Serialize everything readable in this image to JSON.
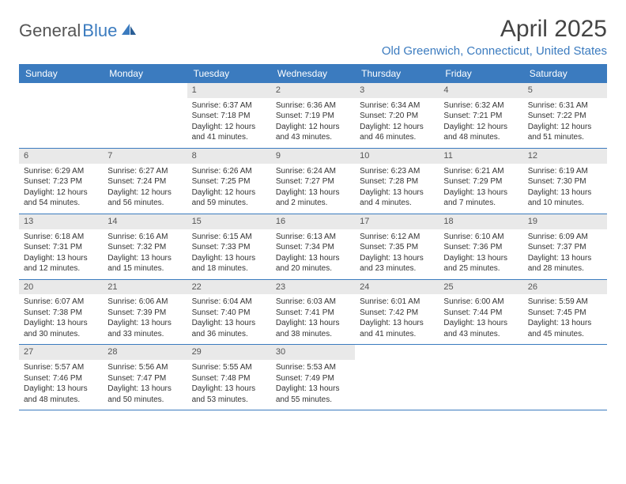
{
  "brand": {
    "part1": "General",
    "part2": "Blue"
  },
  "title": "April 2025",
  "location": "Old Greenwich, Connecticut, United States",
  "day_names": [
    "Sunday",
    "Monday",
    "Tuesday",
    "Wednesday",
    "Thursday",
    "Friday",
    "Saturday"
  ],
  "colors": {
    "accent": "#3b7bbf",
    "header_bg": "#3b7bbf",
    "header_text": "#ffffff",
    "daynum_bg": "#e9e9e9",
    "text": "#333333"
  },
  "weeks": [
    [
      null,
      null,
      {
        "n": "1",
        "sr": "Sunrise: 6:37 AM",
        "ss": "Sunset: 7:18 PM",
        "dl": "Daylight: 12 hours and 41 minutes."
      },
      {
        "n": "2",
        "sr": "Sunrise: 6:36 AM",
        "ss": "Sunset: 7:19 PM",
        "dl": "Daylight: 12 hours and 43 minutes."
      },
      {
        "n": "3",
        "sr": "Sunrise: 6:34 AM",
        "ss": "Sunset: 7:20 PM",
        "dl": "Daylight: 12 hours and 46 minutes."
      },
      {
        "n": "4",
        "sr": "Sunrise: 6:32 AM",
        "ss": "Sunset: 7:21 PM",
        "dl": "Daylight: 12 hours and 48 minutes."
      },
      {
        "n": "5",
        "sr": "Sunrise: 6:31 AM",
        "ss": "Sunset: 7:22 PM",
        "dl": "Daylight: 12 hours and 51 minutes."
      }
    ],
    [
      {
        "n": "6",
        "sr": "Sunrise: 6:29 AM",
        "ss": "Sunset: 7:23 PM",
        "dl": "Daylight: 12 hours and 54 minutes."
      },
      {
        "n": "7",
        "sr": "Sunrise: 6:27 AM",
        "ss": "Sunset: 7:24 PM",
        "dl": "Daylight: 12 hours and 56 minutes."
      },
      {
        "n": "8",
        "sr": "Sunrise: 6:26 AM",
        "ss": "Sunset: 7:25 PM",
        "dl": "Daylight: 12 hours and 59 minutes."
      },
      {
        "n": "9",
        "sr": "Sunrise: 6:24 AM",
        "ss": "Sunset: 7:27 PM",
        "dl": "Daylight: 13 hours and 2 minutes."
      },
      {
        "n": "10",
        "sr": "Sunrise: 6:23 AM",
        "ss": "Sunset: 7:28 PM",
        "dl": "Daylight: 13 hours and 4 minutes."
      },
      {
        "n": "11",
        "sr": "Sunrise: 6:21 AM",
        "ss": "Sunset: 7:29 PM",
        "dl": "Daylight: 13 hours and 7 minutes."
      },
      {
        "n": "12",
        "sr": "Sunrise: 6:19 AM",
        "ss": "Sunset: 7:30 PM",
        "dl": "Daylight: 13 hours and 10 minutes."
      }
    ],
    [
      {
        "n": "13",
        "sr": "Sunrise: 6:18 AM",
        "ss": "Sunset: 7:31 PM",
        "dl": "Daylight: 13 hours and 12 minutes."
      },
      {
        "n": "14",
        "sr": "Sunrise: 6:16 AM",
        "ss": "Sunset: 7:32 PM",
        "dl": "Daylight: 13 hours and 15 minutes."
      },
      {
        "n": "15",
        "sr": "Sunrise: 6:15 AM",
        "ss": "Sunset: 7:33 PM",
        "dl": "Daylight: 13 hours and 18 minutes."
      },
      {
        "n": "16",
        "sr": "Sunrise: 6:13 AM",
        "ss": "Sunset: 7:34 PM",
        "dl": "Daylight: 13 hours and 20 minutes."
      },
      {
        "n": "17",
        "sr": "Sunrise: 6:12 AM",
        "ss": "Sunset: 7:35 PM",
        "dl": "Daylight: 13 hours and 23 minutes."
      },
      {
        "n": "18",
        "sr": "Sunrise: 6:10 AM",
        "ss": "Sunset: 7:36 PM",
        "dl": "Daylight: 13 hours and 25 minutes."
      },
      {
        "n": "19",
        "sr": "Sunrise: 6:09 AM",
        "ss": "Sunset: 7:37 PM",
        "dl": "Daylight: 13 hours and 28 minutes."
      }
    ],
    [
      {
        "n": "20",
        "sr": "Sunrise: 6:07 AM",
        "ss": "Sunset: 7:38 PM",
        "dl": "Daylight: 13 hours and 30 minutes."
      },
      {
        "n": "21",
        "sr": "Sunrise: 6:06 AM",
        "ss": "Sunset: 7:39 PM",
        "dl": "Daylight: 13 hours and 33 minutes."
      },
      {
        "n": "22",
        "sr": "Sunrise: 6:04 AM",
        "ss": "Sunset: 7:40 PM",
        "dl": "Daylight: 13 hours and 36 minutes."
      },
      {
        "n": "23",
        "sr": "Sunrise: 6:03 AM",
        "ss": "Sunset: 7:41 PM",
        "dl": "Daylight: 13 hours and 38 minutes."
      },
      {
        "n": "24",
        "sr": "Sunrise: 6:01 AM",
        "ss": "Sunset: 7:42 PM",
        "dl": "Daylight: 13 hours and 41 minutes."
      },
      {
        "n": "25",
        "sr": "Sunrise: 6:00 AM",
        "ss": "Sunset: 7:44 PM",
        "dl": "Daylight: 13 hours and 43 minutes."
      },
      {
        "n": "26",
        "sr": "Sunrise: 5:59 AM",
        "ss": "Sunset: 7:45 PM",
        "dl": "Daylight: 13 hours and 45 minutes."
      }
    ],
    [
      {
        "n": "27",
        "sr": "Sunrise: 5:57 AM",
        "ss": "Sunset: 7:46 PM",
        "dl": "Daylight: 13 hours and 48 minutes."
      },
      {
        "n": "28",
        "sr": "Sunrise: 5:56 AM",
        "ss": "Sunset: 7:47 PM",
        "dl": "Daylight: 13 hours and 50 minutes."
      },
      {
        "n": "29",
        "sr": "Sunrise: 5:55 AM",
        "ss": "Sunset: 7:48 PM",
        "dl": "Daylight: 13 hours and 53 minutes."
      },
      {
        "n": "30",
        "sr": "Sunrise: 5:53 AM",
        "ss": "Sunset: 7:49 PM",
        "dl": "Daylight: 13 hours and 55 minutes."
      },
      null,
      null,
      null
    ]
  ]
}
